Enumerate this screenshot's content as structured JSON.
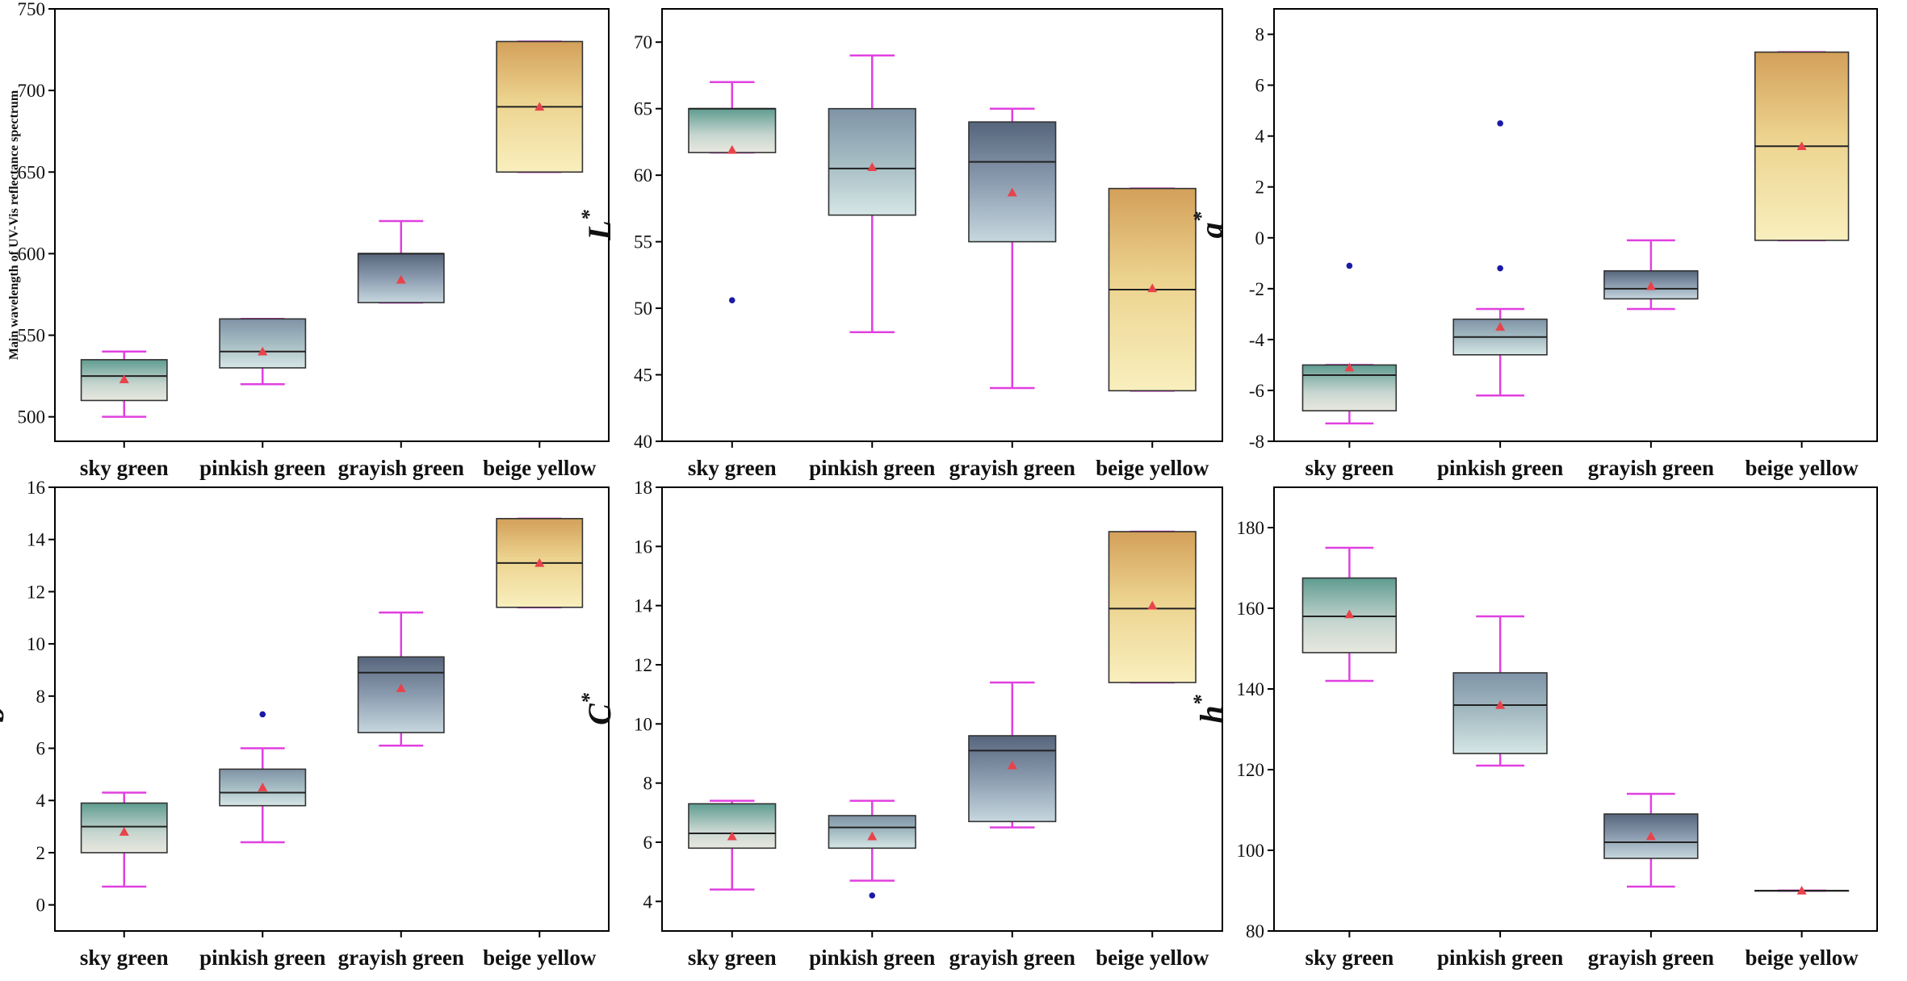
{
  "colors": {
    "whisker": "#e040e0",
    "median": "#222222",
    "mean_marker": "#e8434b",
    "outlier": "#1a1aa8",
    "frame": "#000000",
    "box_edge": "#333333"
  },
  "chart_data": [
    {
      "type": "box",
      "panel": "main-wavelength",
      "ylabel": "Main wavelength of UV-Vis reflectance spectrum",
      "ylabel_style": "small",
      "ylim": [
        485,
        750
      ],
      "yticks": [
        500,
        550,
        600,
        650,
        700,
        750
      ],
      "categories": [
        "sky green",
        "pinkish green",
        "grayish green",
        "beige yellow"
      ],
      "boxes": [
        {
          "category": "sky green",
          "whisker_low": 500,
          "q1": 510,
          "median": 525,
          "q3": 535,
          "whisker_high": 540,
          "mean": 523,
          "outliers": [],
          "palette": "teal"
        },
        {
          "category": "pinkish green",
          "whisker_low": 520,
          "q1": 530,
          "median": 540,
          "q3": 560,
          "whisker_high": 560,
          "mean": 540,
          "outliers": [],
          "palette": "blue-teal"
        },
        {
          "category": "grayish green",
          "whisker_low": 570,
          "q1": 570,
          "median": 600,
          "q3": 600,
          "whisker_high": 620,
          "mean": 584,
          "outliers": [],
          "palette": "slate"
        },
        {
          "category": "beige yellow",
          "whisker_low": 650,
          "q1": 650,
          "median": 690,
          "q3": 730,
          "whisker_high": 730,
          "mean": 690,
          "outliers": [],
          "palette": "gold"
        }
      ]
    },
    {
      "type": "box",
      "panel": "L-star",
      "ylabel": "L",
      "ylabel_sup": "*",
      "ylabel_style": "big",
      "ylim": [
        40,
        72.5
      ],
      "yticks": [
        40,
        45,
        50,
        55,
        60,
        65,
        70
      ],
      "categories": [
        "sky green",
        "pinkish green",
        "grayish green",
        "beige yellow"
      ],
      "boxes": [
        {
          "category": "sky green",
          "whisker_low": 61.7,
          "q1": 61.7,
          "median": 65,
          "q3": 65,
          "whisker_high": 67,
          "mean": 61.9,
          "outliers": [
            50.6
          ],
          "palette": "teal"
        },
        {
          "category": "pinkish green",
          "whisker_low": 48.2,
          "q1": 57,
          "median": 60.5,
          "q3": 65,
          "whisker_high": 69,
          "mean": 60.6,
          "outliers": [],
          "palette": "blue-teal"
        },
        {
          "category": "grayish green",
          "whisker_low": 44,
          "q1": 55,
          "median": 61,
          "q3": 64,
          "whisker_high": 65,
          "mean": 58.7,
          "outliers": [],
          "palette": "slate"
        },
        {
          "category": "beige yellow",
          "whisker_low": 43.8,
          "q1": 43.8,
          "median": 51.4,
          "q3": 59,
          "whisker_high": 59,
          "mean": 51.5,
          "outliers": [],
          "palette": "gold"
        }
      ]
    },
    {
      "type": "box",
      "panel": "a-star",
      "ylabel": "a",
      "ylabel_sup": "*",
      "ylabel_style": "big",
      "ylim": [
        -8,
        9
      ],
      "yticks": [
        -8,
        -6,
        -4,
        -2,
        0,
        2,
        4,
        6,
        8
      ],
      "categories": [
        "sky green",
        "pinkish green",
        "grayish green",
        "beige yellow"
      ],
      "boxes": [
        {
          "category": "sky green",
          "whisker_low": -7.3,
          "q1": -6.8,
          "median": -5.4,
          "q3": -5.0,
          "whisker_high": -5.0,
          "mean": -5.1,
          "outliers": [
            -1.1
          ],
          "palette": "teal"
        },
        {
          "category": "pinkish green",
          "whisker_low": -6.2,
          "q1": -4.6,
          "median": -3.9,
          "q3": -3.2,
          "whisker_high": -2.8,
          "mean": -3.5,
          "outliers": [
            4.5,
            -1.2
          ],
          "palette": "blue-teal"
        },
        {
          "category": "grayish green",
          "whisker_low": -2.8,
          "q1": -2.4,
          "median": -2.0,
          "q3": -1.3,
          "whisker_high": -0.1,
          "mean": -1.9,
          "outliers": [],
          "palette": "slate"
        },
        {
          "category": "beige yellow",
          "whisker_low": -0.1,
          "q1": -0.1,
          "median": 3.6,
          "q3": 7.3,
          "whisker_high": 7.3,
          "mean": 3.6,
          "outliers": [],
          "palette": "gold"
        }
      ]
    },
    {
      "type": "box",
      "panel": "b-star",
      "ylabel": "b",
      "ylabel_sup": "*",
      "ylabel_style": "big",
      "ylim": [
        -1,
        16
      ],
      "yticks": [
        0,
        2,
        4,
        6,
        8,
        10,
        12,
        14,
        16
      ],
      "categories": [
        "sky green",
        "pinkish green",
        "grayish green",
        "beige yellow"
      ],
      "boxes": [
        {
          "category": "sky green",
          "whisker_low": 0.7,
          "q1": 2.0,
          "median": 3.0,
          "q3": 3.9,
          "whisker_high": 4.3,
          "mean": 2.8,
          "outliers": [],
          "palette": "teal"
        },
        {
          "category": "pinkish green",
          "whisker_low": 2.4,
          "q1": 3.8,
          "median": 4.3,
          "q3": 5.2,
          "whisker_high": 6.0,
          "mean": 4.5,
          "outliers": [
            7.3
          ],
          "palette": "blue-teal"
        },
        {
          "category": "grayish green",
          "whisker_low": 6.1,
          "q1": 6.6,
          "median": 8.9,
          "q3": 9.5,
          "whisker_high": 11.2,
          "mean": 8.3,
          "outliers": [],
          "palette": "slate"
        },
        {
          "category": "beige yellow",
          "whisker_low": 11.4,
          "q1": 11.4,
          "median": 13.1,
          "q3": 14.8,
          "whisker_high": 14.8,
          "mean": 13.1,
          "outliers": [],
          "palette": "gold"
        }
      ]
    },
    {
      "type": "box",
      "panel": "C-star",
      "ylabel": "C",
      "ylabel_sup": "*",
      "ylabel_style": "big",
      "ylim": [
        3,
        18
      ],
      "yticks": [
        4,
        6,
        8,
        10,
        12,
        14,
        16,
        18
      ],
      "categories": [
        "sky green",
        "pinkish green",
        "grayish green",
        "beige yellow"
      ],
      "boxes": [
        {
          "category": "sky green",
          "whisker_low": 4.4,
          "q1": 5.8,
          "median": 6.3,
          "q3": 7.3,
          "whisker_high": 7.4,
          "mean": 6.2,
          "outliers": [],
          "palette": "teal"
        },
        {
          "category": "pinkish green",
          "whisker_low": 4.7,
          "q1": 5.8,
          "median": 6.5,
          "q3": 6.9,
          "whisker_high": 7.4,
          "mean": 6.2,
          "outliers": [
            4.2
          ],
          "palette": "blue-teal"
        },
        {
          "category": "grayish green",
          "whisker_low": 6.5,
          "q1": 6.7,
          "median": 9.1,
          "q3": 9.6,
          "whisker_high": 11.4,
          "mean": 8.6,
          "outliers": [],
          "palette": "slate"
        },
        {
          "category": "beige yellow",
          "whisker_low": 11.4,
          "q1": 11.4,
          "median": 13.9,
          "q3": 16.5,
          "whisker_high": 16.5,
          "mean": 14.0,
          "outliers": [],
          "palette": "gold"
        }
      ]
    },
    {
      "type": "box",
      "panel": "h-star",
      "ylabel": "h",
      "ylabel_sup": "*",
      "ylabel_style": "big",
      "ylim": [
        80,
        190
      ],
      "yticks": [
        80,
        100,
        120,
        140,
        160,
        180
      ],
      "categories": [
        "sky green",
        "pinkish green",
        "grayish green",
        "beige yellow"
      ],
      "boxes": [
        {
          "category": "sky green",
          "whisker_low": 142,
          "q1": 149,
          "median": 158,
          "q3": 167.5,
          "whisker_high": 175,
          "mean": 158.5,
          "outliers": [],
          "palette": "teal"
        },
        {
          "category": "pinkish green",
          "whisker_low": 121,
          "q1": 124,
          "median": 136,
          "q3": 144,
          "whisker_high": 158,
          "mean": 136,
          "outliers": [],
          "palette": "blue-teal"
        },
        {
          "category": "grayish green",
          "whisker_low": 91,
          "q1": 98,
          "median": 102,
          "q3": 109,
          "whisker_high": 114,
          "mean": 103.5,
          "outliers": [],
          "palette": "slate"
        },
        {
          "category": "beige yellow",
          "whisker_low": 90,
          "q1": 90,
          "median": 90,
          "q3": 90,
          "whisker_high": 90,
          "mean": 90,
          "outliers": [],
          "palette": "gold"
        }
      ]
    }
  ]
}
